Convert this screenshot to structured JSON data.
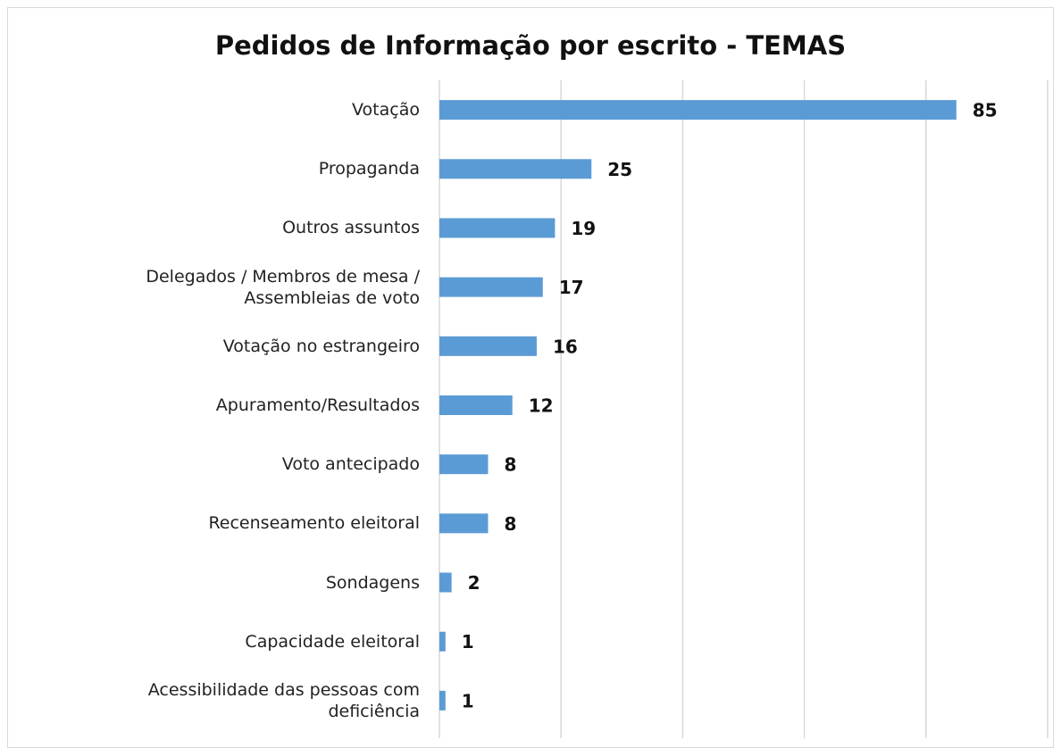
{
  "chart_data": {
    "type": "bar",
    "orientation": "horizontal",
    "title": "Pedidos de Informação por escrito - TEMAS",
    "categories": [
      "Votação",
      "Propaganda",
      "Outros assuntos",
      "Delegados / Membros de mesa / Assembleias de voto",
      "Votação no estrangeiro",
      "Apuramento/Resultados",
      "Voto antecipado",
      "Recenseamento eleitoral",
      "Sondagens",
      "Capacidade eleitoral",
      "Acessibilidade das pessoas com deficiência"
    ],
    "values": [
      85,
      25,
      19,
      17,
      16,
      12,
      8,
      8,
      2,
      1,
      1
    ],
    "color": "#5b9bd5",
    "xlim": [
      0,
      100
    ],
    "xticks": [
      0,
      20,
      40,
      60,
      80,
      100
    ],
    "grid": true
  }
}
